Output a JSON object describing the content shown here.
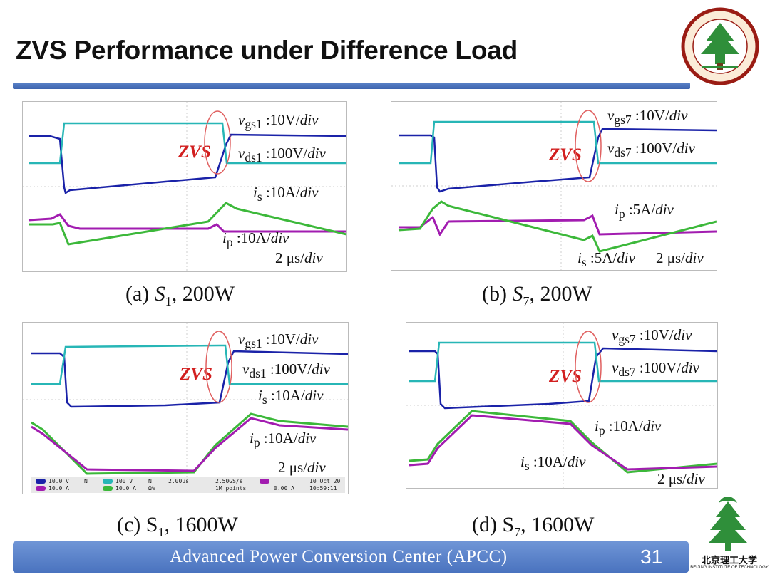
{
  "slide": {
    "title": "ZVS Performance under Difference Load",
    "footer": "Advanced  Power  Conversion  Center (APCC)",
    "page_number": "31",
    "logo_bottom_text": "北京理工大学",
    "logo_bottom_sub": "BEIJING INSTITUTE OF TECHNOLOGY"
  },
  "panels": [
    {
      "caption_prefix": "(a) ",
      "caption_switch": "S",
      "caption_sub": "1",
      "caption_suffix": ", 200W",
      "zvs_label": "ZVS",
      "ann_vgs_sym": "v",
      "ann_vgs_sub": "gs1",
      "ann_vgs_val": " :10V/",
      "ann_vgs_div": "div",
      "ann_vds_sym": "v",
      "ann_vds_sub": "ds1",
      "ann_vds_val": " :100V/",
      "ann_vds_div": "div",
      "ann_is_sym": "i",
      "ann_is_sub": "s",
      "ann_is_val": " :10A/",
      "ann_is_div": "div",
      "ann_ip_sym": "i",
      "ann_ip_sub": "p",
      "ann_ip_val": " :10A/",
      "ann_ip_div": "div",
      "time_val": "2 μs/",
      "time_div": "div"
    },
    {
      "caption_prefix": "(b) ",
      "caption_switch": "S",
      "caption_sub": "7",
      "caption_suffix": ", 200W",
      "zvs_label": "ZVS",
      "ann_vgs_sym": "v",
      "ann_vgs_sub": "gs7",
      "ann_vgs_val": " :10V/",
      "ann_vgs_div": "div",
      "ann_vds_sym": "v",
      "ann_vds_sub": "ds7",
      "ann_vds_val": " :100V/",
      "ann_vds_div": "div",
      "ann_ip_sym": "i",
      "ann_ip_sub": "p",
      "ann_ip_val": " :5A/",
      "ann_ip_div": "div",
      "ann_is_sym": "i",
      "ann_is_sub": "s",
      "ann_is_val": " :5A/",
      "ann_is_div": "div",
      "time_val": "2 μs/",
      "time_div": "div"
    },
    {
      "caption_prefix": "(c) S",
      "caption_sub": "1",
      "caption_suffix": ", 1600W",
      "zvs_label": "ZVS",
      "ann_vgs_sym": "v",
      "ann_vgs_sub": "gs1",
      "ann_vgs_val": " :10V/",
      "ann_vgs_div": "div",
      "ann_vds_sym": "v",
      "ann_vds_sub": "ds1",
      "ann_vds_val": " :100V/",
      "ann_vds_div": "div",
      "ann_is_sym": "i",
      "ann_is_sub": "s",
      "ann_is_val": " :10A/",
      "ann_is_div": "div",
      "ann_ip_sym": "i",
      "ann_ip_sub": "p",
      "ann_ip_val": " :10A/",
      "ann_ip_div": "div",
      "time_val": "2 μs/",
      "time_div": "div",
      "status": {
        "ch1": "10.0 V",
        "ch1_suffix": "N",
        "ch2": "10.0 A",
        "ch3": "100 V",
        "ch3_suffix": "N",
        "ch4": "10.0 A",
        "ch4_suffix": "Ω%",
        "timebase": "2.00μs",
        "sample_rate": "2.50GS/s",
        "record": "1M points",
        "trigger": "0.00 A",
        "date": "10 Oct  20",
        "time": "10:59:11"
      }
    },
    {
      "caption_prefix": "(d) S",
      "caption_sub": "7",
      "caption_suffix": ", 1600W",
      "zvs_label": "ZVS",
      "ann_vgs_sym": "v",
      "ann_vgs_sub": "gs7",
      "ann_vgs_val": " :10V/",
      "ann_vgs_div": "div",
      "ann_vds_sym": "v",
      "ann_vds_sub": "ds7",
      "ann_vds_val": " :100V/",
      "ann_vds_div": "div",
      "ann_ip_sym": "i",
      "ann_ip_sub": "p",
      "ann_ip_val": " :10A/",
      "ann_ip_div": "div",
      "ann_is_sym": "i",
      "ann_is_sub": "s",
      "ann_is_val": " :10A/",
      "ann_is_div": "div",
      "time_val": "2 μs/",
      "time_div": "div"
    }
  ],
  "colors": {
    "title_rule": "#4a6fb8",
    "vgs": "#1a22a8",
    "vds": "#27b6b6",
    "is": "#3cb83a",
    "ip": "#a21cb0",
    "zvs": "#d21f1f"
  }
}
